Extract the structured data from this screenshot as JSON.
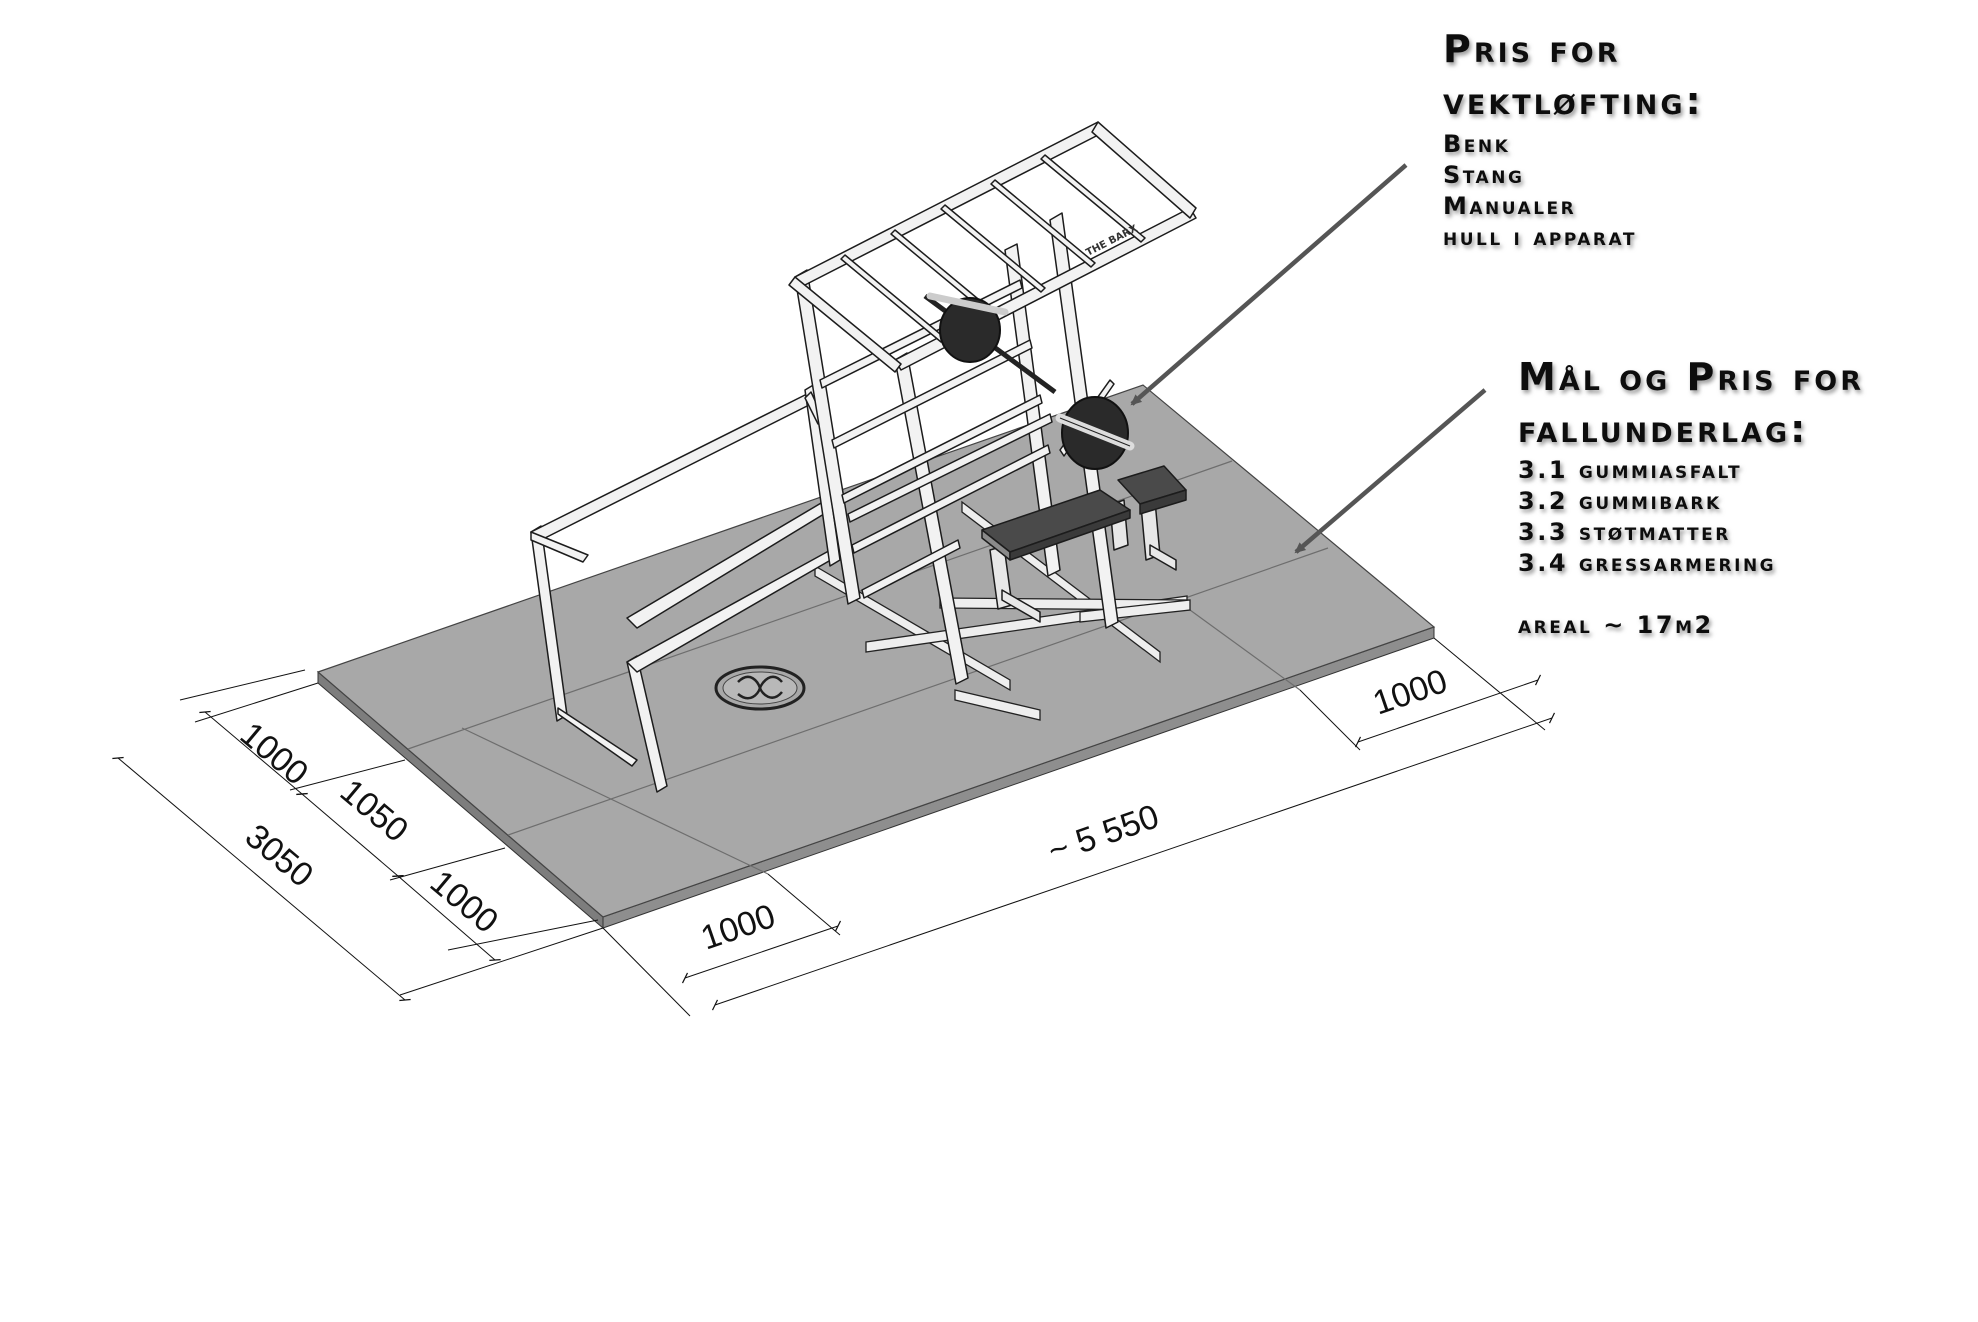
{
  "weightlifting": {
    "title_line1": "Pris for",
    "title_line2": "vektløfting:",
    "items": [
      "Benk",
      "Stang",
      "Manualer",
      "hull i apparat"
    ]
  },
  "underlay": {
    "title_line1": "Mål og Pris for",
    "title_line2": "fallunderlag:",
    "items": [
      "3.1 gummiasfalt",
      "3.2 gummibark",
      "3.3 støtmatter",
      "3.4 gressarmering"
    ],
    "area": "areal ~ 17m2"
  },
  "equipment": {
    "frame_label": "THE BARX"
  },
  "dimensions": {
    "width_total": "3050",
    "width_front": "1000",
    "width_middle": "1050",
    "width_back": "1000",
    "length_total": "~ 5 550",
    "length_left": "1000",
    "length_right": "1000"
  },
  "colors": {
    "mat_top": "#a8a8a8",
    "mat_edge": "#7d7d7d",
    "frame": "#f2f2f2",
    "outline": "#222222",
    "arrow": "#555555"
  }
}
